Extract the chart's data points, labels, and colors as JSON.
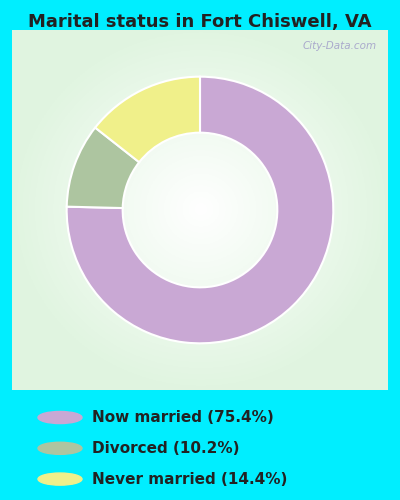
{
  "title": "Marital status in Fort Chiswell, VA",
  "slices": [
    75.4,
    10.2,
    14.4
  ],
  "labels": [
    "Now married (75.4%)",
    "Divorced (10.2%)",
    "Never married (14.4%)"
  ],
  "colors": [
    "#c9a8d4",
    "#adc5a0",
    "#f0f08a"
  ],
  "bg_outer": "#00eeff",
  "title_fontsize": 13,
  "legend_fontsize": 11,
  "title_color": "#222222",
  "legend_text_color": "#222222",
  "watermark": "City-Data.com",
  "startangle": 90,
  "donut_outer": 1.0,
  "donut_inner": 0.58
}
